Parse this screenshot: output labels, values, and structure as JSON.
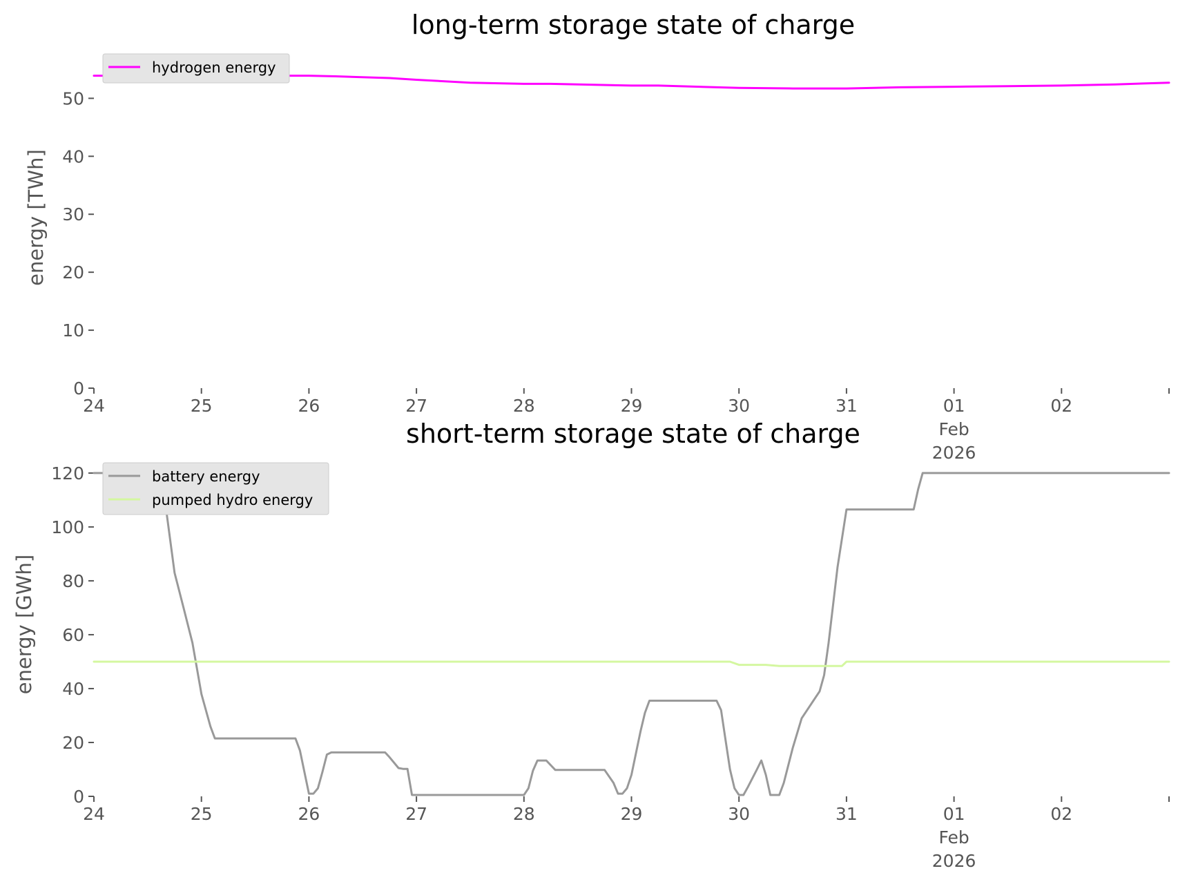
{
  "chart_data": [
    {
      "type": "line",
      "title": "long-term storage state of charge",
      "ylabel": "energy [TWh]",
      "xlabel": "",
      "xlim": [
        "2026-01-24T00:00",
        "2026-02-03T00:00"
      ],
      "ylim": [
        0,
        56
      ],
      "yticks": [
        0,
        10,
        20,
        30,
        40,
        50
      ],
      "xticks": [
        {
          "at": "2026-01-24T00:00",
          "label": "24"
        },
        {
          "at": "2026-01-25T00:00",
          "label": "25"
        },
        {
          "at": "2026-01-26T00:00",
          "label": "26"
        },
        {
          "at": "2026-01-27T00:00",
          "label": "27"
        },
        {
          "at": "2026-01-28T00:00",
          "label": "28"
        },
        {
          "at": "2026-01-29T00:00",
          "label": "29"
        },
        {
          "at": "2026-01-30T00:00",
          "label": "30"
        },
        {
          "at": "2026-01-31T00:00",
          "label": "31"
        },
        {
          "at": "2026-02-01T00:00",
          "label": "01",
          "label2": "Feb",
          "label3": "2026"
        },
        {
          "at": "2026-02-02T00:00",
          "label": "02"
        },
        {
          "at": "2026-02-03T00:00",
          "label": ""
        }
      ],
      "grid": false,
      "legend": "top-left",
      "series": [
        {
          "name": "hydrogen energy",
          "color": "#ff00ff",
          "points": [
            [
              "2026-01-24T00:00",
              53.9
            ],
            [
              "2026-01-25T00:00",
              53.9
            ],
            [
              "2026-01-26T00:00",
              53.9
            ],
            [
              "2026-01-26T06:00",
              53.8
            ],
            [
              "2026-01-26T18:00",
              53.5
            ],
            [
              "2026-01-27T00:00",
              53.2
            ],
            [
              "2026-01-27T12:00",
              52.7
            ],
            [
              "2026-01-28T00:00",
              52.5
            ],
            [
              "2026-01-28T06:00",
              52.5
            ],
            [
              "2026-01-29T00:00",
              52.2
            ],
            [
              "2026-01-29T06:00",
              52.2
            ],
            [
              "2026-01-30T00:00",
              51.8
            ],
            [
              "2026-01-30T12:00",
              51.7
            ],
            [
              "2026-01-31T00:00",
              51.7
            ],
            [
              "2026-01-31T12:00",
              51.9
            ],
            [
              "2026-02-01T00:00",
              52.0
            ],
            [
              "2026-02-01T12:00",
              52.1
            ],
            [
              "2026-02-02T00:00",
              52.2
            ],
            [
              "2026-02-02T12:00",
              52.4
            ],
            [
              "2026-02-03T00:00",
              52.7
            ]
          ]
        }
      ]
    },
    {
      "type": "line",
      "title": "short-term storage state of charge",
      "ylabel": "energy [GWh]",
      "xlabel": "",
      "xlim": [
        "2026-01-24T00:00",
        "2026-02-03T00:00"
      ],
      "ylim": [
        0,
        121
      ],
      "yticks": [
        0,
        20,
        40,
        60,
        80,
        100,
        120
      ],
      "xticks": [
        {
          "at": "2026-01-24T00:00",
          "label": "24"
        },
        {
          "at": "2026-01-25T00:00",
          "label": "25"
        },
        {
          "at": "2026-01-26T00:00",
          "label": "26"
        },
        {
          "at": "2026-01-27T00:00",
          "label": "27"
        },
        {
          "at": "2026-01-28T00:00",
          "label": "28"
        },
        {
          "at": "2026-01-29T00:00",
          "label": "29"
        },
        {
          "at": "2026-01-30T00:00",
          "label": "30"
        },
        {
          "at": "2026-01-31T00:00",
          "label": "31"
        },
        {
          "at": "2026-02-01T00:00",
          "label": "01",
          "label2": "Feb",
          "label3": "2026"
        },
        {
          "at": "2026-02-02T00:00",
          "label": "02"
        },
        {
          "at": "2026-02-03T00:00",
          "label": ""
        }
      ],
      "grid": false,
      "legend": "top-left",
      "series": [
        {
          "name": "battery energy",
          "color": "#999999",
          "points": [
            [
              "2026-01-24T00:00",
              120
            ],
            [
              "2026-01-24T15:00",
              120
            ],
            [
              "2026-01-24T16:00",
              108
            ],
            [
              "2026-01-24T18:00",
              83
            ],
            [
              "2026-01-24T20:00",
              70
            ],
            [
              "2026-01-24T22:00",
              57
            ],
            [
              "2026-01-25T00:00",
              38
            ],
            [
              "2026-01-25T02:00",
              26
            ],
            [
              "2026-01-25T03:00",
              21.5
            ],
            [
              "2026-01-25T21:00",
              21.5
            ],
            [
              "2026-01-25T22:00",
              17
            ],
            [
              "2026-01-25T23:00",
              9
            ],
            [
              "2026-01-26T00:00",
              1
            ],
            [
              "2026-01-26T01:00",
              1
            ],
            [
              "2026-01-26T02:00",
              3
            ],
            [
              "2026-01-26T03:00",
              9
            ],
            [
              "2026-01-26T04:00",
              15.5
            ],
            [
              "2026-01-26T05:00",
              16.3
            ],
            [
              "2026-01-26T17:00",
              16.3
            ],
            [
              "2026-01-26T18:00",
              14.5
            ],
            [
              "2026-01-26T20:00",
              10.5
            ],
            [
              "2026-01-26T21:00",
              10.2
            ],
            [
              "2026-01-26T22:00",
              10.2
            ],
            [
              "2026-01-26T23:00",
              0.5
            ],
            [
              "2026-01-28T00:00",
              0.5
            ],
            [
              "2026-01-28T01:00",
              3
            ],
            [
              "2026-01-28T02:00",
              9.5
            ],
            [
              "2026-01-28T03:00",
              13.3
            ],
            [
              "2026-01-28T05:00",
              13.3
            ],
            [
              "2026-01-28T07:00",
              9.8
            ],
            [
              "2026-01-28T18:00",
              9.8
            ],
            [
              "2026-01-28T20:00",
              5
            ],
            [
              "2026-01-28T21:00",
              1
            ],
            [
              "2026-01-28T22:00",
              1
            ],
            [
              "2026-01-28T23:00",
              3
            ],
            [
              "2026-01-29T00:00",
              8
            ],
            [
              "2026-01-29T01:00",
              16
            ],
            [
              "2026-01-29T02:00",
              24
            ],
            [
              "2026-01-29T03:00",
              31
            ],
            [
              "2026-01-29T04:00",
              35.5
            ],
            [
              "2026-01-29T19:00",
              35.5
            ],
            [
              "2026-01-29T20:00",
              32
            ],
            [
              "2026-01-29T21:00",
              21
            ],
            [
              "2026-01-29T22:00",
              10
            ],
            [
              "2026-01-29T23:00",
              3
            ],
            [
              "2026-01-30T00:00",
              0.5
            ],
            [
              "2026-01-30T01:00",
              0.5
            ],
            [
              "2026-01-30T02:00",
              3.5
            ],
            [
              "2026-01-30T04:00",
              10
            ],
            [
              "2026-01-30T05:00",
              13.3
            ],
            [
              "2026-01-30T06:00",
              8
            ],
            [
              "2026-01-30T07:00",
              0.5
            ],
            [
              "2026-01-30T09:00",
              0.5
            ],
            [
              "2026-01-30T10:00",
              5
            ],
            [
              "2026-01-30T12:00",
              18
            ],
            [
              "2026-01-30T14:00",
              29
            ],
            [
              "2026-01-30T16:00",
              34
            ],
            [
              "2026-01-30T18:00",
              39
            ],
            [
              "2026-01-30T19:00",
              45
            ],
            [
              "2026-01-30T20:00",
              57
            ],
            [
              "2026-01-30T22:00",
              85
            ],
            [
              "2026-01-31T00:00",
              106.5
            ],
            [
              "2026-01-31T15:00",
              106.5
            ],
            [
              "2026-01-31T16:00",
              114
            ],
            [
              "2026-01-31T17:00",
              120
            ],
            [
              "2026-02-03T00:00",
              120
            ]
          ]
        },
        {
          "name": "pumped hydro energy",
          "color": "#d4f7a0",
          "points": [
            [
              "2026-01-24T00:00",
              50
            ],
            [
              "2026-01-29T22:00",
              50
            ],
            [
              "2026-01-30T00:00",
              48.8
            ],
            [
              "2026-01-30T06:00",
              48.8
            ],
            [
              "2026-01-30T09:00",
              48.4
            ],
            [
              "2026-01-30T23:00",
              48.4
            ],
            [
              "2026-01-31T00:00",
              50
            ],
            [
              "2026-02-03T00:00",
              50
            ]
          ]
        }
      ]
    }
  ]
}
